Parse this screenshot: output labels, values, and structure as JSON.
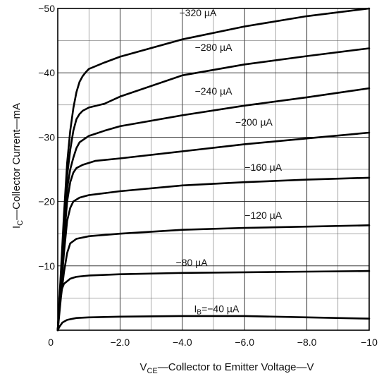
{
  "chart_data": {
    "type": "line",
    "x_axis": {
      "label_sub": "CE",
      "label_prefix": "V",
      "label_rest": "—Collector to Emitter Voltage—V",
      "range": [
        0,
        -10
      ],
      "ticks": [
        {
          "value": 0,
          "label": "0"
        },
        {
          "value": -2,
          "label": "−2.0"
        },
        {
          "value": -4,
          "label": "−4.0"
        },
        {
          "value": -6,
          "label": "−6.0"
        },
        {
          "value": -8,
          "label": "−8.0"
        },
        {
          "value": -10,
          "label": "−10"
        }
      ],
      "grid_step": -1
    },
    "y_axis": {
      "label_prefix": "I",
      "label_sub": "C",
      "label_rest": "—Collector Current—mA",
      "range": [
        0,
        -50
      ],
      "ticks": [
        {
          "value": -10,
          "label": "−10"
        },
        {
          "value": -20,
          "label": "−20"
        },
        {
          "value": -30,
          "label": "−30"
        },
        {
          "value": -40,
          "label": "−40"
        },
        {
          "value": -50,
          "label": "−50"
        }
      ],
      "grid_step": -5
    },
    "grid": true,
    "series": [
      {
        "name": "IB=−40 µA",
        "label": "I",
        "label_sub": "B",
        "label_rest": "=−40 µA",
        "label_at": [
          -5.1,
          -2.8
        ],
        "x": [
          0,
          -0.05,
          -0.15,
          -0.3,
          -0.6,
          -1.0,
          -2.0,
          -4.0,
          -6.0,
          -8.0,
          -10.0
        ],
        "y": [
          0,
          -0.5,
          -1.2,
          -1.6,
          -1.9,
          -2.0,
          -2.1,
          -2.2,
          -2.2,
          -2.0,
          -1.8
        ]
      },
      {
        "name": "−80 µA",
        "label": "−80 µA",
        "label_at": [
          -4.3,
          -10.0
        ],
        "x": [
          0,
          -0.05,
          -0.1,
          -0.2,
          -0.4,
          -0.6,
          -1.0,
          -2.0,
          -4.0,
          -6.0,
          -8.0,
          -10.0
        ],
        "y": [
          0,
          -3.5,
          -6.0,
          -7.2,
          -8.0,
          -8.3,
          -8.5,
          -8.7,
          -8.9,
          -9.0,
          -9.1,
          -9.2
        ]
      },
      {
        "name": "−120 µA",
        "label": "−120 µA",
        "label_at": [
          -6.6,
          -17.3
        ],
        "x": [
          0,
          -0.1,
          -0.2,
          -0.3,
          -0.4,
          -0.6,
          -1.0,
          -2.0,
          -4.0,
          -6.0,
          -8.0,
          -10.0
        ],
        "y": [
          0,
          -5.0,
          -9.0,
          -12.0,
          -13.5,
          -14.2,
          -14.6,
          -15.0,
          -15.6,
          -15.9,
          -16.1,
          -16.3
        ]
      },
      {
        "name": "−160 µA",
        "label": "−160 µA",
        "label_at": [
          -6.6,
          -24.8
        ],
        "x": [
          0,
          -0.1,
          -0.2,
          -0.3,
          -0.4,
          -0.5,
          -0.7,
          -1.0,
          -2.0,
          -4.0,
          -6.0,
          -8.0,
          -10.0
        ],
        "y": [
          0,
          -6.0,
          -12.0,
          -17.0,
          -19.0,
          -20.0,
          -20.6,
          -21.0,
          -21.6,
          -22.5,
          -23.0,
          -23.4,
          -23.7
        ]
      },
      {
        "name": "−200 µA",
        "label": "−200 µA",
        "label_at": [
          -6.3,
          -31.8
        ],
        "x": [
          0,
          -0.1,
          -0.2,
          -0.3,
          -0.4,
          -0.5,
          -0.6,
          -0.8,
          -1.0,
          -1.2,
          -2.0,
          -4.0,
          -6.0,
          -8.0,
          -10.0
        ],
        "y": [
          0,
          -7.0,
          -14.0,
          -20.0,
          -23.0,
          -24.5,
          -25.2,
          -25.7,
          -26.0,
          -26.3,
          -26.7,
          -27.8,
          -28.9,
          -29.8,
          -30.7
        ]
      },
      {
        "name": "−240 µA",
        "label": "−240 µA",
        "label_at": [
          -5.0,
          -36.6
        ],
        "x": [
          0,
          -0.1,
          -0.2,
          -0.3,
          -0.4,
          -0.5,
          -0.6,
          -0.7,
          -1.0,
          -1.5,
          -2.0,
          -4.0,
          -6.0,
          -8.0,
          -10.0
        ],
        "y": [
          0,
          -8.0,
          -16.0,
          -22.0,
          -25.0,
          -26.8,
          -28.3,
          -29.2,
          -30.2,
          -31.0,
          -31.7,
          -33.4,
          -34.9,
          -36.2,
          -37.6
        ]
      },
      {
        "name": "−280 µA",
        "label": "−280 µA",
        "label_at": [
          -5.0,
          -43.4
        ],
        "x": [
          0,
          -0.1,
          -0.2,
          -0.3,
          -0.4,
          -0.5,
          -0.6,
          -0.7,
          -0.8,
          -1.0,
          -1.5,
          -2.0,
          -4.0,
          -6.0,
          -8.0,
          -10.0
        ],
        "y": [
          0,
          -8.5,
          -17.0,
          -24.0,
          -28.0,
          -31.0,
          -32.8,
          -33.6,
          -34.1,
          -34.6,
          -35.2,
          -36.3,
          -39.6,
          -41.3,
          -42.6,
          -43.8
        ]
      },
      {
        "name": "−320 µA",
        "label": "−320 µA",
        "label_at": [
          -4.5,
          -48.8
        ],
        "x": [
          0,
          -0.1,
          -0.2,
          -0.3,
          -0.4,
          -0.5,
          -0.6,
          -0.7,
          -0.8,
          -0.9,
          -1.0,
          -1.5,
          -2.0,
          -4.0,
          -6.0,
          -8.0,
          -10.0
        ],
        "y": [
          0,
          -9.0,
          -18.0,
          -26.0,
          -31.0,
          -34.5,
          -37.0,
          -38.6,
          -39.5,
          -40.1,
          -40.6,
          -41.6,
          -42.5,
          -45.2,
          -47.2,
          -48.8,
          -50.0
        ]
      }
    ]
  }
}
